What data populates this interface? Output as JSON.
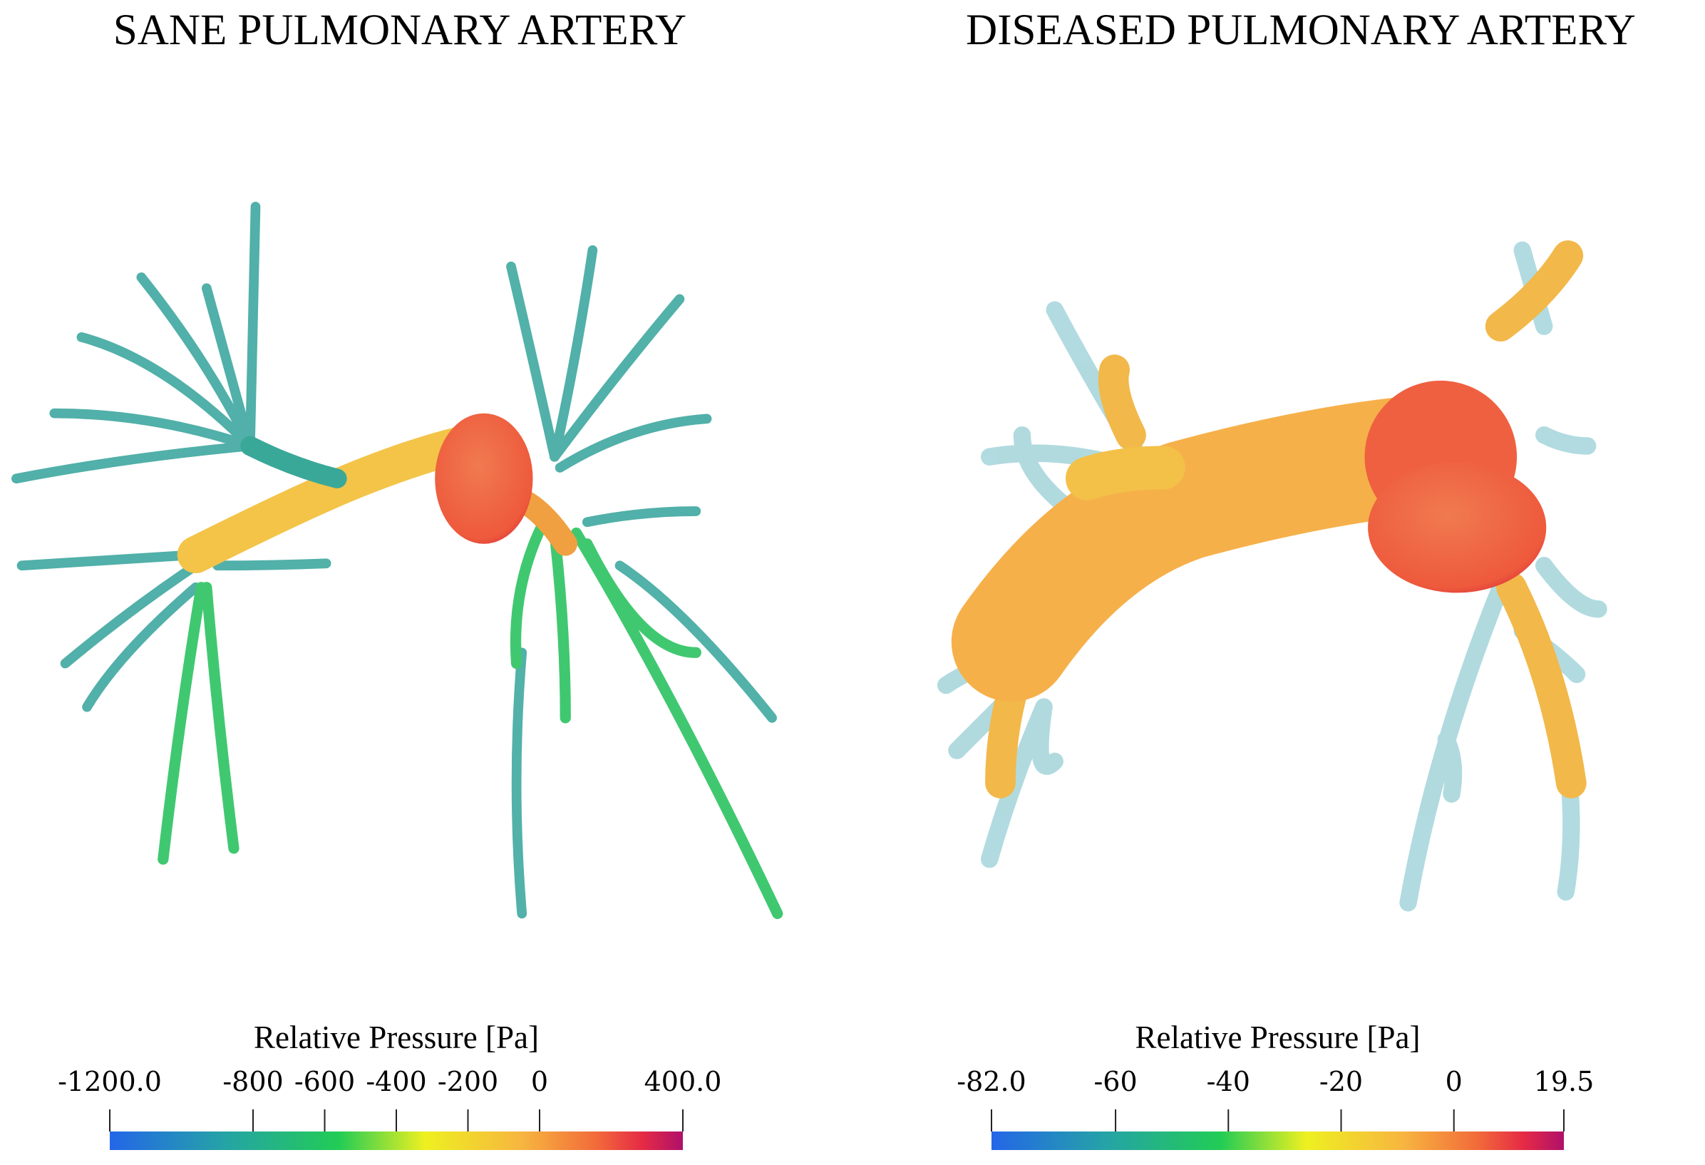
{
  "panels": [
    {
      "title": "SANE PULMONARY ARTERY",
      "colorbar": {
        "label": "Relative Pressure [Pa]",
        "lim": [
          -1200,
          400
        ],
        "ticks": [
          {
            "value": -1200,
            "label": "-1200.0"
          },
          -800,
          -600,
          -400,
          -200,
          0,
          {
            "value": 400,
            "label": "400.0"
          }
        ]
      }
    },
    {
      "title": "DISEASED  PULMONARY ARTERY",
      "colorbar": {
        "label": "Relative Pressure [Pa]",
        "lim": [
          -82,
          19.5
        ],
        "ticks": [
          {
            "value": -82,
            "label": "-82.0"
          },
          -60,
          -40,
          -20,
          0,
          19.5
        ]
      }
    }
  ]
}
